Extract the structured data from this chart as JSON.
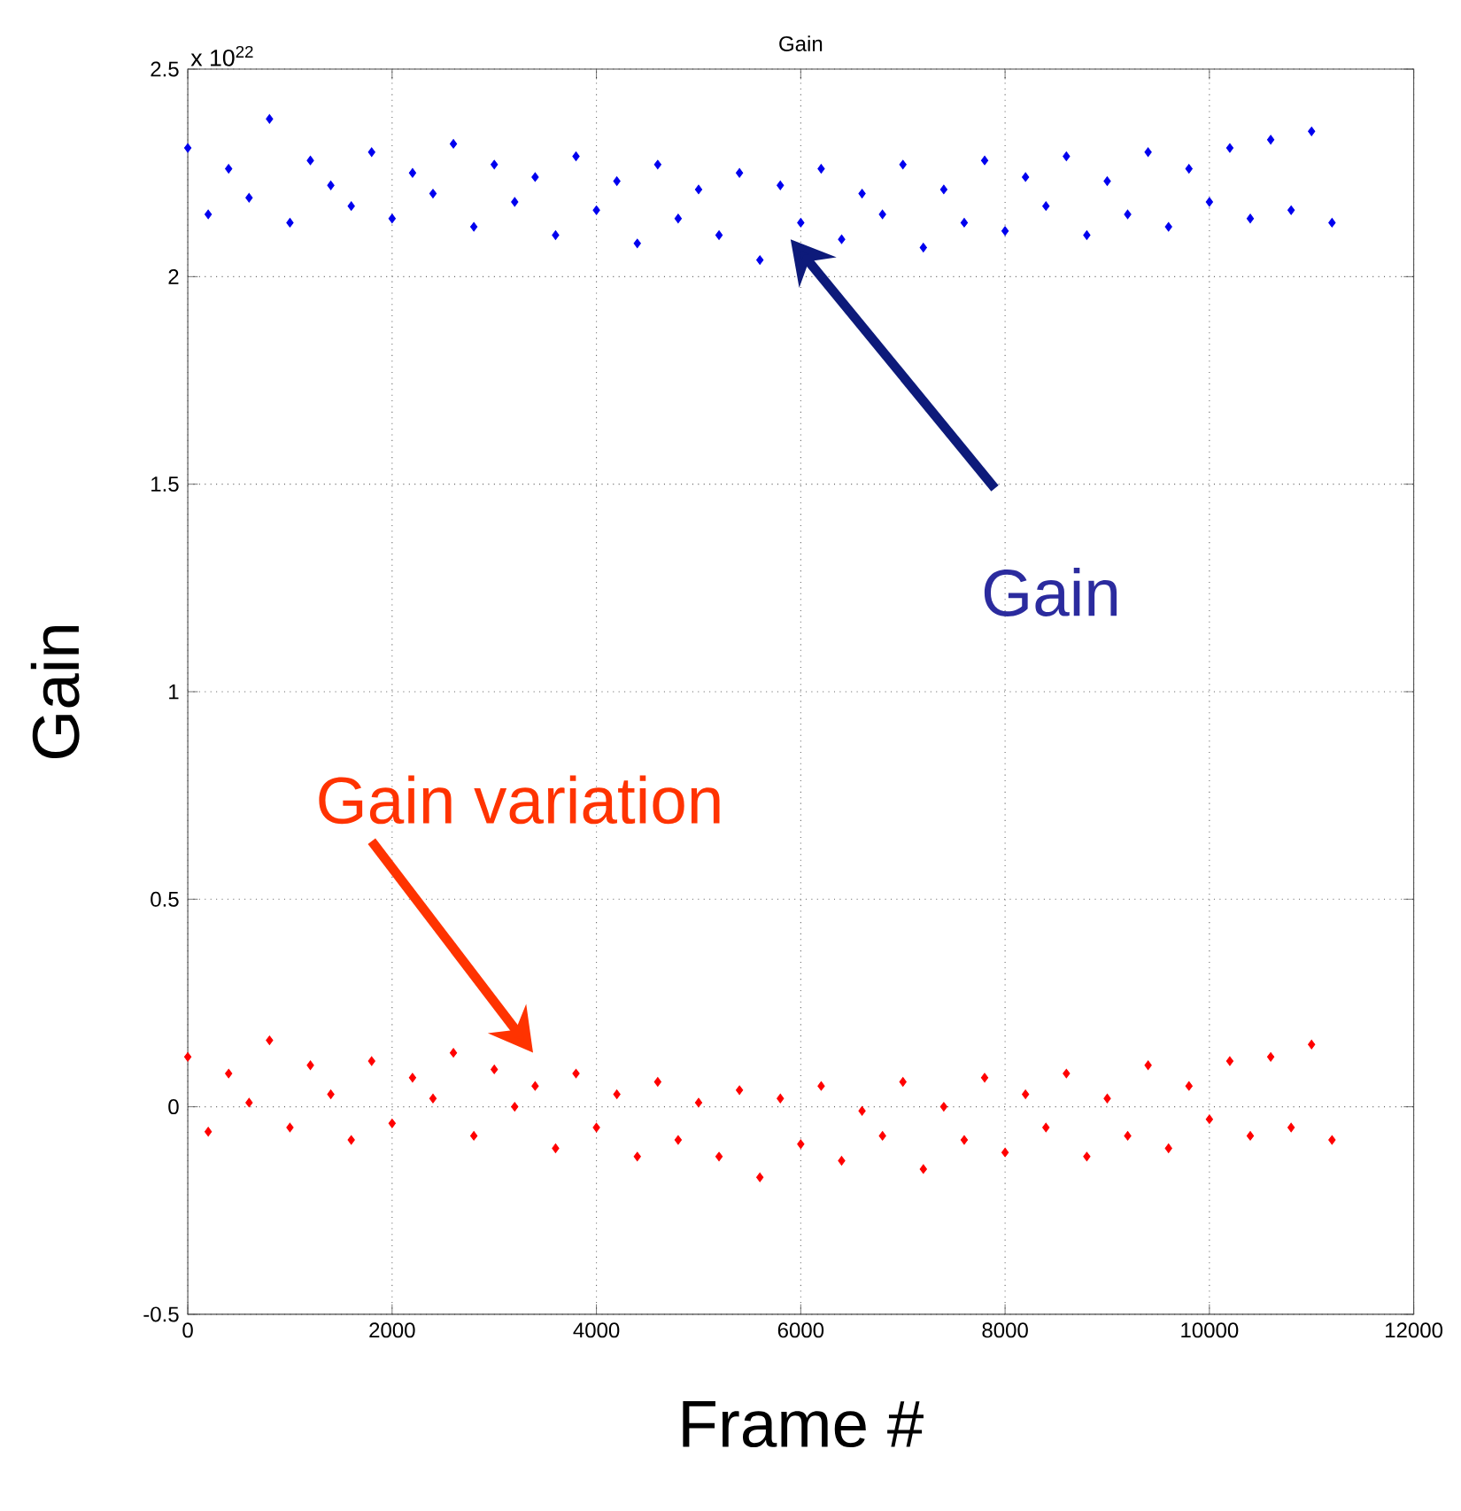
{
  "chart_data": {
    "type": "scatter",
    "title": "Gain",
    "xlabel": "Frame #",
    "ylabel": "Gain",
    "x": [
      0,
      200,
      400,
      600,
      800,
      1000,
      1200,
      1400,
      1600,
      1800,
      2000,
      2200,
      2400,
      2600,
      2800,
      3000,
      3200,
      3400,
      3600,
      3800,
      4000,
      4200,
      4400,
      4600,
      4800,
      5000,
      5200,
      5400,
      5600,
      5800,
      6000,
      6200,
      6400,
      6600,
      6800,
      7000,
      7200,
      7400,
      7600,
      7800,
      8000,
      8200,
      8400,
      8600,
      8800,
      9000,
      9200,
      9400,
      9600,
      9800,
      10000,
      10200,
      10400,
      10600,
      10800,
      11000,
      11200
    ],
    "series": [
      {
        "color": "#0000ee",
        "values": [
          2.31,
          2.15,
          2.26,
          2.19,
          2.38,
          2.13,
          2.28,
          2.22,
          2.17,
          2.3,
          2.14,
          2.25,
          2.2,
          2.32,
          2.12,
          2.27,
          2.18,
          2.24,
          2.1,
          2.29,
          2.16,
          2.23,
          2.08,
          2.27,
          2.14,
          2.21,
          2.1,
          2.25,
          2.04,
          2.22,
          2.13,
          2.26,
          2.09,
          2.2,
          2.15,
          2.27,
          2.07,
          2.21,
          2.13,
          2.28,
          2.11,
          2.24,
          2.17,
          2.29,
          2.1,
          2.23,
          2.15,
          2.3,
          2.12,
          2.26,
          2.18,
          2.31,
          2.14,
          2.33,
          2.16,
          2.35,
          2.13
        ]
      },
      {
        "color": "#ff0000",
        "values": [
          0.12,
          -0.06,
          0.08,
          0.01,
          0.16,
          -0.05,
          0.1,
          0.03,
          -0.08,
          0.11,
          -0.04,
          0.07,
          0.02,
          0.13,
          -0.07,
          0.09,
          0.0,
          0.05,
          -0.1,
          0.08,
          -0.05,
          0.03,
          -0.12,
          0.06,
          -0.08,
          0.01,
          -0.12,
          0.04,
          -0.17,
          0.02,
          -0.09,
          0.05,
          -0.13,
          -0.01,
          -0.07,
          0.06,
          -0.15,
          0.0,
          -0.08,
          0.07,
          -0.11,
          0.03,
          -0.05,
          0.08,
          -0.12,
          0.02,
          -0.07,
          0.1,
          -0.1,
          0.05,
          -0.03,
          0.11,
          -0.07,
          0.12,
          -0.05,
          0.15,
          -0.08
        ]
      }
    ],
    "xlim": [
      0,
      12000
    ],
    "xticks": [
      0,
      2000,
      4000,
      6000,
      8000,
      10000,
      12000
    ],
    "ylim": [
      -0.5,
      2.5
    ],
    "yticks": [
      -0.5,
      0,
      0.5,
      1,
      1.5,
      2,
      2.5
    ],
    "grid": true,
    "marker": "diamond",
    "annotations": [
      "x 10$^{22}$",
      "Gain",
      "Gain variation"
    ]
  }
}
